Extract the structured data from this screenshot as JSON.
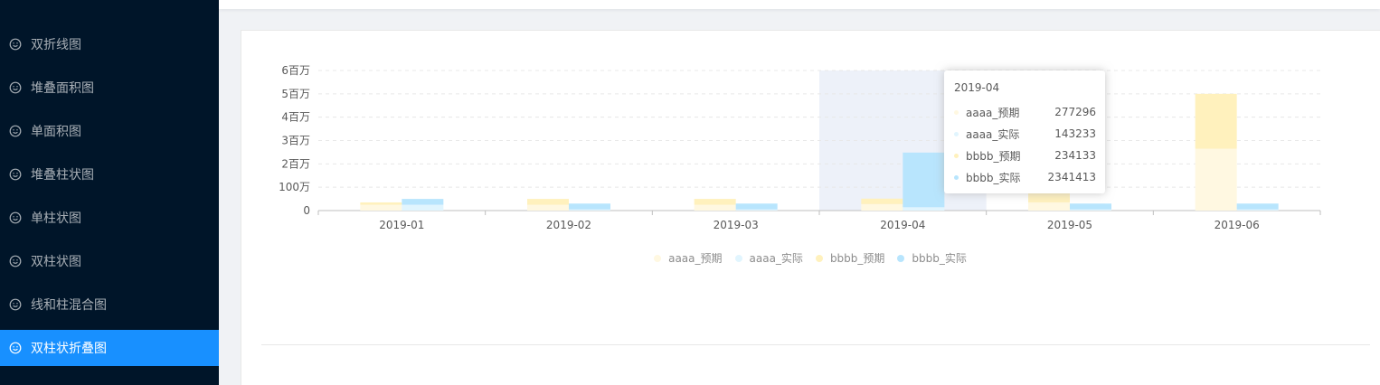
{
  "sidebar": {
    "items": [
      {
        "label": "双折线图",
        "active": false
      },
      {
        "label": "堆叠面积图",
        "active": false
      },
      {
        "label": "单面积图",
        "active": false
      },
      {
        "label": "堆叠柱状图",
        "active": false
      },
      {
        "label": "单柱状图",
        "active": false
      },
      {
        "label": "双柱状图",
        "active": false
      },
      {
        "label": "线和柱混合图",
        "active": false
      },
      {
        "label": "双柱状折叠图",
        "active": true
      }
    ]
  },
  "colors": {
    "sidebar_bg": "#001529",
    "active_bg": "#1890ff",
    "aaaa_expected": "#fff8e1",
    "aaaa_actual": "#e1f5fe",
    "bbbb_expected": "#fff1bd",
    "bbbb_actual": "#b8e5fd",
    "highlight": "#edf1f9"
  },
  "tooltip": {
    "title": "2019-04",
    "rows": [
      {
        "name": "aaaa_预期",
        "value": "277296",
        "color": "#fff8e1"
      },
      {
        "name": "aaaa_实际",
        "value": "143233",
        "color": "#e1f5fe"
      },
      {
        "name": "bbbb_预期",
        "value": "234133",
        "color": "#fff1bd"
      },
      {
        "name": "bbbb_实际",
        "value": "2341413",
        "color": "#b8e5fd"
      }
    ]
  },
  "chart_data": {
    "type": "bar",
    "stacked_groups": [
      [
        "aaaa_预期",
        "bbbb_预期"
      ],
      [
        "aaaa_实际",
        "bbbb_实际"
      ]
    ],
    "categories": [
      "2019-01",
      "2019-02",
      "2019-03",
      "2019-04",
      "2019-05",
      "2019-06"
    ],
    "y_ticks": [
      {
        "value": 0,
        "label": "0"
      },
      {
        "value": 1000000,
        "label": "100万"
      },
      {
        "value": 2000000,
        "label": "2百万"
      },
      {
        "value": 3000000,
        "label": "3百万"
      },
      {
        "value": 4000000,
        "label": "4百万"
      },
      {
        "value": 5000000,
        "label": "5百万"
      },
      {
        "value": 6000000,
        "label": "6百万"
      }
    ],
    "ylim": [
      0,
      6000000
    ],
    "highlighted_category": "2019-04",
    "series": [
      {
        "name": "aaaa_预期",
        "color": "#fff8e1",
        "values": [
          250000,
          250000,
          250000,
          277296,
          350000,
          2650000
        ]
      },
      {
        "name": "bbbb_预期",
        "color": "#fff1bd",
        "values": [
          100000,
          250000,
          250000,
          234133,
          1800000,
          2350000
        ]
      },
      {
        "name": "aaaa_实际",
        "color": "#e1f5fe",
        "values": [
          250000,
          50000,
          50000,
          143233,
          50000,
          50000
        ]
      },
      {
        "name": "bbbb_实际",
        "color": "#b8e5fd",
        "values": [
          250000,
          250000,
          250000,
          2341413,
          250000,
          250000
        ]
      }
    ],
    "legend": [
      "aaaa_预期",
      "aaaa_实际",
      "bbbb_预期",
      "bbbb_实际"
    ],
    "legend_position": "bottom",
    "grid": true
  }
}
